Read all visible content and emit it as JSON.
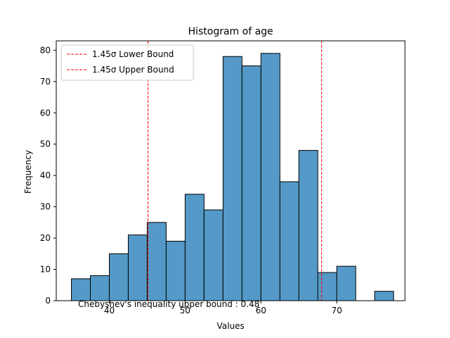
{
  "chart_data": {
    "type": "bar",
    "title": "Histogram of age",
    "xlabel": "Values",
    "ylabel": "Frequency",
    "xlim": [
      33.0,
      79.0
    ],
    "ylim": [
      0,
      83
    ],
    "xticks": [
      40,
      50,
      60,
      70
    ],
    "yticks": [
      0,
      10,
      20,
      30,
      40,
      50,
      60,
      70,
      80
    ],
    "bar_color": "#5499c7",
    "bins": [
      {
        "x0": 35.0,
        "x1": 37.5,
        "count": 7
      },
      {
        "x0": 37.5,
        "x1": 40.0,
        "count": 8
      },
      {
        "x0": 40.0,
        "x1": 42.5,
        "count": 15
      },
      {
        "x0": 42.5,
        "x1": 45.0,
        "count": 21
      },
      {
        "x0": 45.0,
        "x1": 47.5,
        "count": 25
      },
      {
        "x0": 47.5,
        "x1": 50.0,
        "count": 19
      },
      {
        "x0": 50.0,
        "x1": 52.5,
        "count": 34
      },
      {
        "x0": 52.5,
        "x1": 55.0,
        "count": 29
      },
      {
        "x0": 55.0,
        "x1": 57.5,
        "count": 78
      },
      {
        "x0": 57.5,
        "x1": 60.0,
        "count": 75
      },
      {
        "x0": 60.0,
        "x1": 62.5,
        "count": 79
      },
      {
        "x0": 62.5,
        "x1": 65.0,
        "count": 38
      },
      {
        "x0": 65.0,
        "x1": 67.5,
        "count": 48
      },
      {
        "x0": 67.5,
        "x1": 70.0,
        "count": 9
      },
      {
        "x0": 70.0,
        "x1": 72.5,
        "count": 11
      },
      {
        "x0": 75.0,
        "x1": 77.5,
        "count": 3
      }
    ],
    "vlines": [
      {
        "name": "1.45σ Lower Bound",
        "x": 45.1,
        "color": "#ff0000"
      },
      {
        "name": "1.45σ Upper Bound",
        "x": 68.0,
        "color": "#ff0000"
      }
    ],
    "legend_position": "top-left",
    "annotation": "Chebyshev's inequality upper bound : 0.48"
  }
}
